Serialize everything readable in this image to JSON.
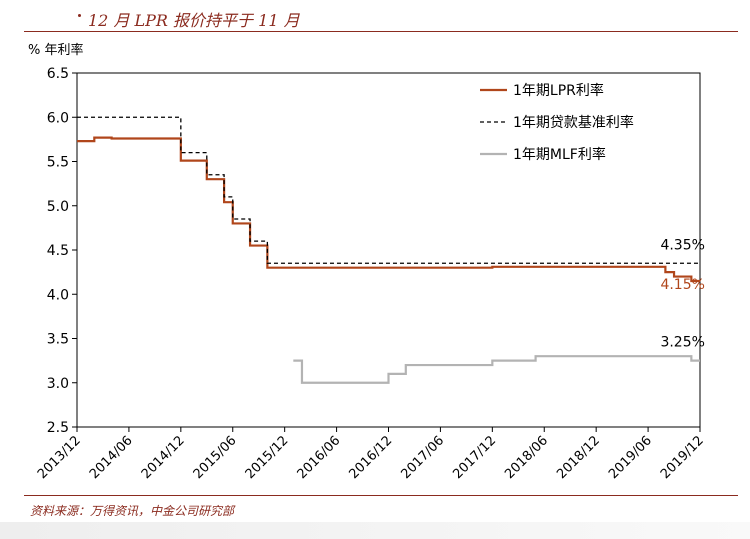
{
  "header": {
    "title": "12 月 LPR 报价持平于 11 月"
  },
  "source": {
    "text": "资料来源：万得资讯，中金公司研究部"
  },
  "chart_data": {
    "type": "line",
    "ylabel": "% 年利率",
    "ylim": [
      2.5,
      6.5
    ],
    "yticks": [
      "2.5",
      "3.0",
      "3.5",
      "4.0",
      "4.5",
      "5.0",
      "5.5",
      "6.0",
      "6.5"
    ],
    "xlim": [
      "2013/12",
      "2019/12"
    ],
    "xticks": [
      "2013/12",
      "2014/06",
      "2014/12",
      "2015/06",
      "2015/12",
      "2016/06",
      "2016/12",
      "2017/06",
      "2017/12",
      "2018/06",
      "2018/12",
      "2019/06",
      "2019/12"
    ],
    "grid": false,
    "legend_position": "top-right",
    "series": [
      {
        "name": "1年期LPR利率",
        "color": "#b0461b",
        "style": "solid",
        "step": true,
        "points": [
          [
            "2013/12",
            5.73
          ],
          [
            "2014/02",
            5.77
          ],
          [
            "2014/04",
            5.76
          ],
          [
            "2014/12",
            5.51
          ],
          [
            "2015/03",
            5.3
          ],
          [
            "2015/05",
            5.04
          ],
          [
            "2015/06",
            4.8
          ],
          [
            "2015/08",
            4.55
          ],
          [
            "2015/10",
            4.3
          ],
          [
            "2017/12",
            4.31
          ],
          [
            "2018/06",
            4.31
          ],
          [
            "2019/08",
            4.25
          ],
          [
            "2019/09",
            4.2
          ],
          [
            "2019/11",
            4.15
          ],
          [
            "2019/12",
            4.15
          ]
        ]
      },
      {
        "name": "1年期贷款基准利率",
        "color": "#000000",
        "style": "dashed",
        "step": true,
        "points": [
          [
            "2013/12",
            6.0
          ],
          [
            "2014/12",
            5.6
          ],
          [
            "2015/03",
            5.35
          ],
          [
            "2015/05",
            5.1
          ],
          [
            "2015/06",
            4.85
          ],
          [
            "2015/08",
            4.6
          ],
          [
            "2015/10",
            4.35
          ],
          [
            "2019/12",
            4.35
          ]
        ]
      },
      {
        "name": "1年期MLF利率",
        "color": "#b3b3b3",
        "style": "solid",
        "step": true,
        "points": [
          [
            "2016/01",
            3.25
          ],
          [
            "2016/02",
            3.0
          ],
          [
            "2016/12",
            3.1
          ],
          [
            "2017/02",
            3.2
          ],
          [
            "2017/12",
            3.25
          ],
          [
            "2018/05",
            3.3
          ],
          [
            "2019/11",
            3.25
          ],
          [
            "2019/12",
            3.25
          ]
        ]
      }
    ],
    "annotations": [
      {
        "text": "4.35%",
        "color": "#000000",
        "date": "2019/10",
        "y": 4.35
      },
      {
        "text": "4.15%",
        "color": "#b0461b",
        "date": "2019/10",
        "y": 4.15
      },
      {
        "text": "3.25%",
        "color": "#000000",
        "date": "2019/10",
        "y": 3.25
      }
    ]
  }
}
